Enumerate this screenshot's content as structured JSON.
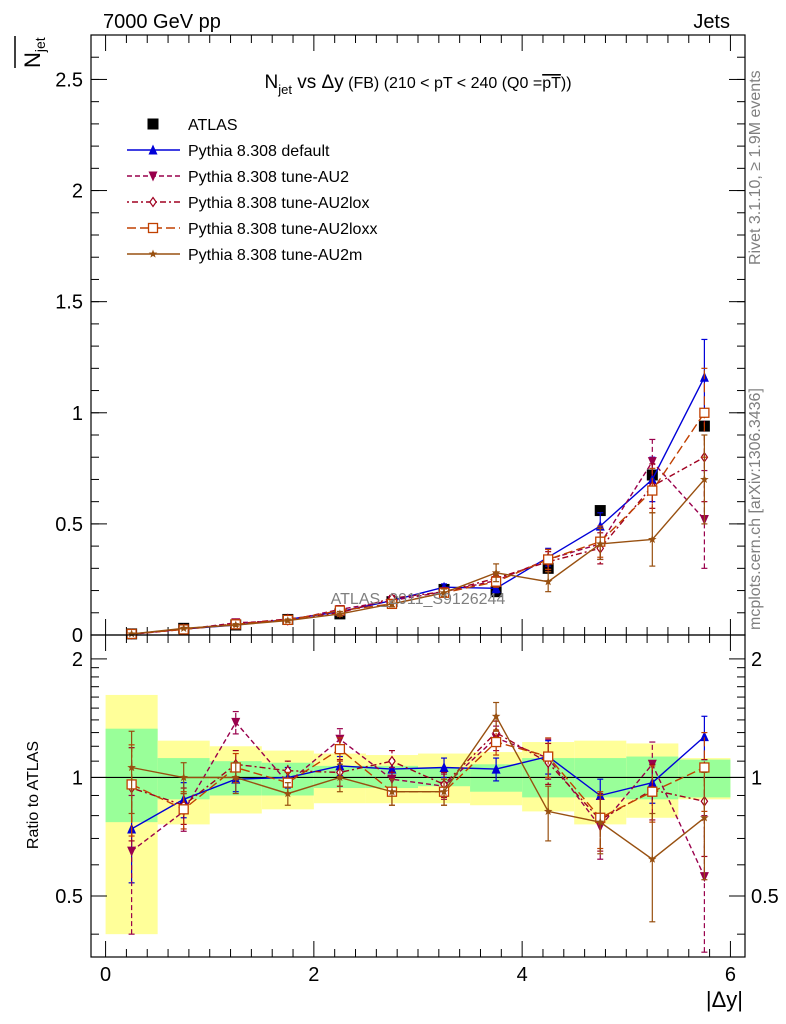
{
  "header": {
    "left": "7000 GeV pp",
    "right": "Jets"
  },
  "side_labels": {
    "rivet": "Rivet 3.1.10, ≥ 1.9M events",
    "mcplots": "mcplots.cern.ch [arXiv:1306.3436]"
  },
  "watermark": "ATLAS_2011_S9126244",
  "colors": {
    "ATLAS": "#000000",
    "default": "#0000d8",
    "AU2": "#99004c",
    "AU2lox": "#a00020",
    "AU2loxx": "#c04000",
    "AU2m": "#985010",
    "band_stat": "#99ff99",
    "band_total": "#ffff99"
  },
  "chart_data": [
    {
      "type": "line",
      "title": "N_jet vs Δy (FB) (210 < pT < 240 (Q0 = pT))",
      "title_parts": {
        "n": "N",
        "sub": "jet",
        "vs": " vs Δy",
        "fb": " (FB) ",
        "range": "(210 < pT < 240 (Q0 =",
        "ptbar": "pT",
        "close": "))"
      },
      "ylabel": "N̅_jet",
      "ylabel_parts": {
        "n": "N",
        "sub": "jet"
      },
      "xlim": [
        -0.14,
        6.14
      ],
      "ylim": [
        0,
        2.7
      ],
      "y_ticks": [
        "0",
        "0.5",
        "1",
        "1.5",
        "2",
        "2.5"
      ],
      "x": [
        0.25,
        0.75,
        1.25,
        1.75,
        2.25,
        2.75,
        3.25,
        3.75,
        4.25,
        4.75,
        5.25,
        5.75
      ],
      "series": [
        {
          "name": "ATLAS",
          "key": "ATLAS",
          "marker": "square-filled",
          "line": "none",
          "values": [
            0.005,
            0.03,
            0.045,
            0.07,
            0.095,
            0.15,
            0.205,
            0.195,
            0.3,
            0.56,
            0.72,
            0.94
          ]
        },
        {
          "name": "Pythia 8.308 default",
          "key": "default",
          "marker": "triangle-up",
          "line": "solid",
          "values": [
            0.004,
            0.027,
            0.045,
            0.07,
            0.105,
            0.155,
            0.215,
            0.21,
            0.35,
            0.49,
            0.7,
            1.16
          ],
          "errors": [
            0.001,
            0.003,
            0.005,
            0.006,
            0.01,
            0.012,
            0.015,
            0.02,
            0.04,
            0.06,
            0.1,
            0.17
          ]
        },
        {
          "name": "Pythia 8.308 tune-AU2",
          "key": "AU2",
          "marker": "triangle-down",
          "line": "dashed",
          "values": [
            0.003,
            0.025,
            0.055,
            0.065,
            0.115,
            0.155,
            0.195,
            0.245,
            0.34,
            0.41,
            0.78,
            0.52
          ],
          "errors": [
            0.001,
            0.003,
            0.006,
            0.007,
            0.011,
            0.013,
            0.017,
            0.025,
            0.045,
            0.07,
            0.1,
            0.22
          ]
        },
        {
          "name": "Pythia 8.308 tune-AU2lox",
          "key": "AU2lox",
          "marker": "diamond-open",
          "line": "dashdot",
          "values": [
            0.0045,
            0.027,
            0.05,
            0.072,
            0.1,
            0.165,
            0.195,
            0.255,
            0.33,
            0.39,
            0.67,
            0.8
          ],
          "errors": [
            0.001,
            0.003,
            0.006,
            0.007,
            0.011,
            0.013,
            0.017,
            0.025,
            0.045,
            0.07,
            0.1,
            0.2
          ]
        },
        {
          "name": "Pythia 8.308 tune-AU2loxx",
          "key": "AU2loxx",
          "marker": "square-open",
          "line": "longdash",
          "values": [
            0.0048,
            0.025,
            0.048,
            0.068,
            0.11,
            0.14,
            0.19,
            0.24,
            0.34,
            0.42,
            0.65,
            1.0
          ],
          "errors": [
            0.001,
            0.003,
            0.006,
            0.007,
            0.011,
            0.013,
            0.017,
            0.025,
            0.045,
            0.07,
            0.1,
            0.2
          ]
        },
        {
          "name": "Pythia 8.308 tune-AU2m",
          "key": "AU2m",
          "marker": "star",
          "line": "solid",
          "values": [
            0.005,
            0.03,
            0.045,
            0.065,
            0.095,
            0.14,
            0.19,
            0.28,
            0.24,
            0.41,
            0.43,
            0.7
          ],
          "errors": [
            0.001,
            0.003,
            0.006,
            0.007,
            0.011,
            0.013,
            0.017,
            0.04,
            0.045,
            0.07,
            0.12,
            0.2
          ]
        }
      ]
    },
    {
      "type": "line",
      "ylabel": "Ratio to ATLAS",
      "xlabel": "|Δy|",
      "xlim": [
        -0.14,
        6.14
      ],
      "ylim": [
        0.35,
        2.3
      ],
      "y_scale": "log",
      "y_ticks": [
        "0.5",
        "1",
        "2"
      ],
      "x_ticks": [
        "0",
        "2",
        "4",
        "6"
      ],
      "x": [
        0.25,
        0.75,
        1.25,
        1.75,
        2.25,
        2.75,
        3.25,
        3.75,
        4.25,
        4.75,
        5.25,
        5.75
      ],
      "bins": [
        [
          0,
          0.5
        ],
        [
          0.5,
          1
        ],
        [
          1,
          1.5
        ],
        [
          1.5,
          2
        ],
        [
          2,
          2.5
        ],
        [
          2.5,
          3
        ],
        [
          3,
          3.5
        ],
        [
          3.5,
          4
        ],
        [
          4,
          4.5
        ],
        [
          4.5,
          5
        ],
        [
          5,
          5.5
        ],
        [
          5.5,
          6
        ]
      ],
      "band_stat": [
        [
          0.77,
          1.33
        ],
        [
          0.88,
          1.12
        ],
        [
          0.9,
          1.1
        ],
        [
          0.9,
          1.09
        ],
        [
          0.94,
          1.07
        ],
        [
          0.94,
          1.07
        ],
        [
          0.95,
          1.06
        ],
        [
          0.92,
          1.08
        ],
        [
          0.89,
          1.12
        ],
        [
          0.89,
          1.12
        ],
        [
          0.88,
          1.13
        ],
        [
          0.89,
          1.11
        ]
      ],
      "band_total": [
        [
          0.4,
          1.62
        ],
        [
          0.76,
          1.24
        ],
        [
          0.81,
          1.2
        ],
        [
          0.83,
          1.17
        ],
        [
          0.86,
          1.15
        ],
        [
          0.86,
          1.14
        ],
        [
          0.86,
          1.15
        ],
        [
          0.85,
          1.16
        ],
        [
          0.82,
          1.23
        ],
        [
          0.76,
          1.24
        ],
        [
          0.79,
          1.22
        ],
        [
          0.88,
          1.12
        ]
      ],
      "series": [
        {
          "name": "Pythia 8.308 default",
          "key": "default",
          "marker": "triangle-up",
          "line": "solid",
          "values": [
            0.74,
            0.88,
            0.99,
            1.0,
            1.07,
            1.05,
            1.06,
            1.05,
            1.13,
            0.9,
            0.97,
            1.27
          ],
          "errors": [
            0.2,
            0.09,
            0.07,
            0.06,
            0.06,
            0.06,
            0.06,
            0.07,
            0.11,
            0.09,
            0.11,
            0.16
          ]
        },
        {
          "name": "Pythia 8.308 tune-AU2",
          "key": "AU2",
          "marker": "triangle-down",
          "line": "dashed",
          "values": [
            0.65,
            0.82,
            1.38,
            0.97,
            1.25,
            0.99,
            0.95,
            1.26,
            1.12,
            0.75,
            1.08,
            0.56
          ],
          "errors": [
            0.25,
            0.09,
            0.09,
            0.06,
            0.08,
            0.07,
            0.07,
            0.09,
            0.13,
            0.13,
            0.15,
            0.24
          ]
        },
        {
          "name": "Pythia 8.308 tune-AU2lox",
          "key": "AU2lox",
          "marker": "diamond-open",
          "line": "dashdot",
          "values": [
            0.94,
            0.85,
            1.08,
            1.04,
            1.03,
            1.1,
            0.96,
            1.3,
            1.09,
            0.78,
            0.93,
            0.87
          ],
          "errors": [
            0.25,
            0.09,
            0.09,
            0.06,
            0.08,
            0.07,
            0.07,
            0.09,
            0.13,
            0.13,
            0.15,
            0.24
          ]
        },
        {
          "name": "Pythia 8.308 tune-AU2loxx",
          "key": "AU2loxx",
          "marker": "square-open",
          "line": "longdash",
          "values": [
            0.96,
            0.83,
            1.06,
            0.97,
            1.18,
            0.92,
            0.92,
            1.23,
            1.13,
            0.79,
            0.92,
            1.06
          ],
          "errors": [
            0.25,
            0.09,
            0.09,
            0.06,
            0.08,
            0.07,
            0.07,
            0.09,
            0.13,
            0.13,
            0.15,
            0.24
          ]
        },
        {
          "name": "Pythia 8.308 tune-AU2m",
          "key": "AU2m",
          "marker": "star",
          "line": "solid",
          "values": [
            1.06,
            1.0,
            1.0,
            0.91,
            1.0,
            0.92,
            0.92,
            1.43,
            0.82,
            0.77,
            0.62,
            0.79
          ],
          "errors": [
            0.25,
            0.09,
            0.09,
            0.06,
            0.08,
            0.07,
            0.07,
            0.12,
            0.13,
            0.13,
            0.19,
            0.24
          ]
        }
      ]
    }
  ]
}
